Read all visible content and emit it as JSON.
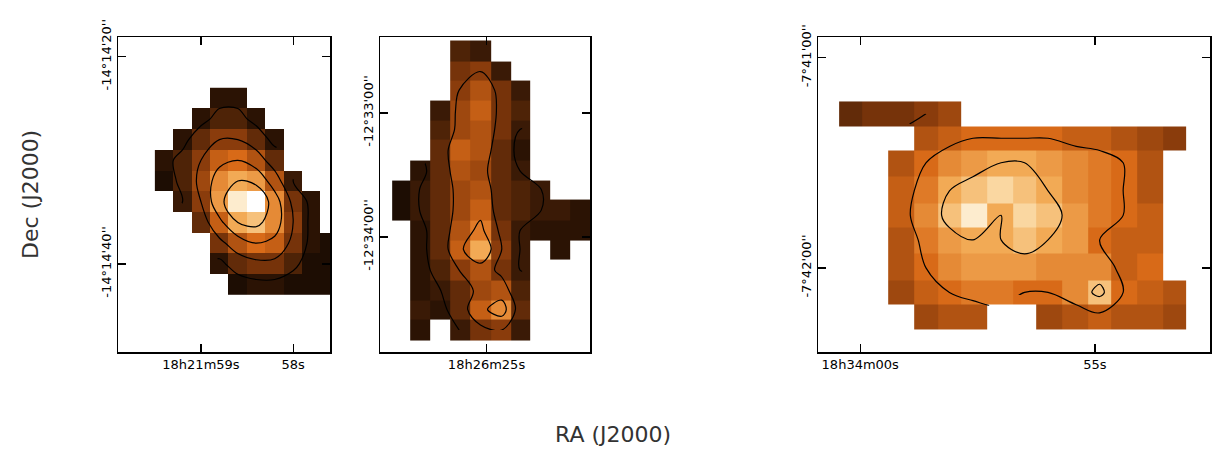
{
  "xlabel": "RA (J2000)",
  "ylabel": "Dec (J2000)",
  "chart_data": [
    {
      "type": "heatmap",
      "x": [
        59.4,
        59.2,
        59.0,
        58.8,
        58.6,
        58.4,
        58.2,
        58.0,
        57.8,
        57.6
      ],
      "y": [
        -864,
        -866,
        -868,
        -870,
        -872,
        -874,
        -876,
        -878,
        -880,
        -882
      ],
      "cells": [
        [
          null,
          null,
          null,
          0.15,
          0.15,
          null,
          null,
          null,
          null,
          null
        ],
        [
          null,
          null,
          0.15,
          0.25,
          0.25,
          0.15,
          null,
          null,
          null,
          null
        ],
        [
          null,
          0.15,
          0.3,
          0.4,
          0.4,
          0.3,
          0.15,
          null,
          null,
          null
        ],
        [
          0.15,
          0.25,
          0.4,
          0.55,
          0.6,
          0.5,
          0.3,
          null,
          null,
          null
        ],
        [
          0.1,
          0.25,
          0.45,
          0.7,
          0.8,
          0.75,
          0.5,
          0.2,
          null,
          null
        ],
        [
          null,
          0.2,
          0.4,
          0.75,
          0.95,
          1.0,
          0.7,
          0.35,
          0.15,
          null
        ],
        [
          null,
          null,
          0.3,
          0.55,
          0.8,
          0.85,
          0.7,
          0.4,
          0.15,
          null
        ],
        [
          null,
          null,
          null,
          0.35,
          0.5,
          0.6,
          0.55,
          0.35,
          0.15,
          0.1
        ],
        [
          null,
          null,
          null,
          0.15,
          0.3,
          0.35,
          0.35,
          0.25,
          0.1,
          0.1
        ],
        [
          null,
          null,
          null,
          null,
          0.1,
          0.15,
          0.15,
          0.1,
          0.1,
          0.1
        ]
      ],
      "color_range": [
        0,
        1
      ],
      "contour_levels": [
        0.2,
        0.4,
        0.6,
        0.8
      ],
      "xlim": [
        59.9,
        57.6
      ],
      "ylim": [
        -888.5,
        -858.1
      ],
      "xticks": [
        {
          "value": 59,
          "label": "18h21m59s"
        },
        {
          "value": 58,
          "label": "58s"
        }
      ],
      "yticks": [
        {
          "value": -860,
          "label": "-14°14'20''"
        },
        {
          "value": -880,
          "label": "-14°14'40''"
        }
      ]
    },
    {
      "type": "heatmap",
      "x": [
        27.8,
        27.2,
        26.5,
        25.9,
        25.2,
        24.5,
        23.9,
        23.2,
        22.6,
        21.9
      ],
      "y": [
        -1950,
        -1960,
        -1969,
        -1979,
        -1988,
        -1998,
        -2008,
        -2017,
        -2027,
        -2037,
        -2046,
        -2056,
        -2066,
        -2075,
        -2085
      ],
      "cells": [
        [
          null,
          null,
          null,
          0.25,
          0.2,
          null,
          null,
          null,
          null,
          null
        ],
        [
          null,
          null,
          null,
          0.35,
          0.4,
          0.2,
          null,
          null,
          null,
          null
        ],
        [
          null,
          null,
          null,
          0.4,
          0.5,
          0.35,
          0.2,
          null,
          null,
          null
        ],
        [
          null,
          null,
          0.2,
          0.45,
          0.55,
          0.35,
          0.25,
          null,
          null,
          null
        ],
        [
          null,
          null,
          0.25,
          0.45,
          0.5,
          0.35,
          0.2,
          null,
          null,
          null
        ],
        [
          null,
          null,
          0.3,
          0.55,
          0.5,
          0.3,
          0.15,
          null,
          null,
          null
        ],
        [
          null,
          0.15,
          0.3,
          0.5,
          0.45,
          0.3,
          0.2,
          null,
          null,
          null
        ],
        [
          0.1,
          0.2,
          0.3,
          0.45,
          0.5,
          0.3,
          0.25,
          0.2,
          null,
          null
        ],
        [
          0.1,
          0.2,
          0.3,
          0.45,
          0.55,
          0.3,
          0.25,
          0.2,
          0.2,
          0.15
        ],
        [
          null,
          0.15,
          0.3,
          0.5,
          0.65,
          0.35,
          0.2,
          0.15,
          0.15,
          0.15
        ],
        [
          null,
          0.15,
          0.3,
          0.55,
          0.8,
          0.4,
          0.2,
          null,
          0.15,
          null
        ],
        [
          null,
          0.15,
          0.25,
          0.4,
          0.5,
          0.35,
          0.2,
          null,
          null,
          null
        ],
        [
          null,
          0.15,
          0.2,
          0.3,
          0.45,
          0.5,
          0.25,
          null,
          null,
          null
        ],
        [
          null,
          0.2,
          0.15,
          0.3,
          0.55,
          0.7,
          0.3,
          null,
          null,
          null
        ],
        [
          null,
          0.15,
          null,
          0.2,
          0.35,
          0.4,
          0.2,
          null,
          null,
          null
        ]
      ],
      "color_range": [
        0,
        1
      ],
      "contour_levels": [
        0.2,
        0.4,
        0.6,
        0.8
      ],
      "xlim": [
        28.5,
        21.6
      ],
      "ylim": [
        -2095.6,
        -1943.3
      ],
      "xticks": [
        {
          "value": 25,
          "label": "18h26m25s"
        }
      ],
      "yticks": [
        {
          "value": -1980,
          "label": "-12°33'00''"
        },
        {
          "value": -2040,
          "label": "-12°34'00''"
        }
      ]
    },
    {
      "type": "heatmap",
      "x": [
        0.2,
        -0.3,
        -0.9,
        -1.4,
        -1.9,
        -2.4,
        -3.0,
        -3.5,
        -4.0,
        -4.6,
        -5.1,
        -5.6,
        -6.2,
        -6.7
      ],
      "y": [
        -2476,
        -2483,
        -2490,
        -2498,
        -2505,
        -2512,
        -2520,
        -2527,
        -2534
      ],
      "cells": [
        [
          0.3,
          0.35,
          0.35,
          0.4,
          0.45,
          null,
          null,
          null,
          null,
          null,
          null,
          null,
          null,
          null
        ],
        [
          null,
          null,
          null,
          0.5,
          0.55,
          0.6,
          0.6,
          0.6,
          0.6,
          0.55,
          0.55,
          0.5,
          0.45,
          0.4
        ],
        [
          null,
          null,
          0.5,
          0.6,
          0.7,
          0.75,
          0.8,
          0.8,
          0.75,
          0.7,
          0.65,
          0.6,
          0.5,
          null
        ],
        [
          null,
          null,
          0.55,
          0.65,
          0.8,
          0.85,
          0.9,
          0.85,
          0.8,
          0.7,
          0.65,
          0.6,
          0.5,
          null
        ],
        [
          null,
          null,
          0.55,
          0.7,
          0.85,
          0.95,
          0.8,
          0.9,
          0.85,
          0.75,
          0.65,
          0.6,
          0.55,
          null
        ],
        [
          null,
          null,
          0.5,
          0.65,
          0.75,
          0.8,
          0.8,
          0.85,
          0.8,
          0.75,
          0.6,
          0.55,
          0.55,
          null
        ],
        [
          null,
          null,
          0.5,
          0.6,
          0.7,
          0.75,
          0.75,
          0.75,
          0.7,
          0.7,
          0.7,
          0.55,
          0.6,
          null
        ],
        [
          null,
          null,
          0.45,
          0.55,
          0.6,
          0.65,
          0.65,
          0.6,
          0.6,
          0.7,
          0.85,
          0.6,
          0.55,
          0.5
        ],
        [
          null,
          null,
          null,
          0.45,
          0.5,
          0.5,
          null,
          null,
          0.45,
          0.5,
          0.55,
          0.5,
          0.5,
          0.45
        ]
      ],
      "color_range": [
        0,
        1
      ],
      "contour_levels": [
        0.2,
        0.4,
        0.6,
        0.8
      ],
      "xlim": [
        0.9,
        -7.45
      ],
      "ylim": [
        -2544,
        -2454.1
      ],
      "xticks": [
        {
          "value": 0,
          "label": "18h34m00s"
        },
        {
          "value": -5,
          "label": "55s"
        }
      ],
      "yticks": [
        {
          "value": -2460,
          "label": "-7°41'00''"
        },
        {
          "value": -2520,
          "label": "-7°42'00''"
        }
      ]
    }
  ]
}
